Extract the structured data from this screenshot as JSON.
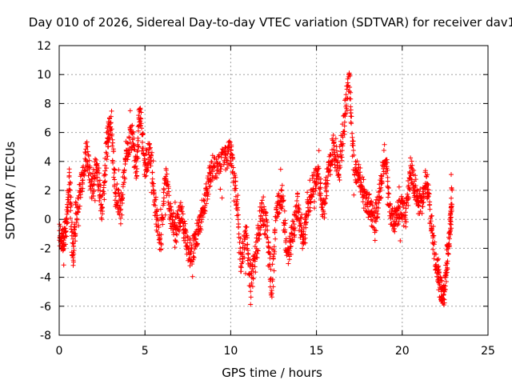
{
  "chart_data": {
    "type": "scatter",
    "title": "Day 010 of 2026, Sidereal Day-to-day VTEC variation (SDTVAR) for receiver dav1",
    "xlabel": "GPS time / hours",
    "ylabel": "SDTVAR / TECUs",
    "xlim": [
      0,
      25
    ],
    "ylim": [
      -8,
      12
    ],
    "xticks": [
      "0",
      "5",
      "10",
      "15",
      "20",
      "25"
    ],
    "yticks": [
      "-8",
      "-6",
      "-4",
      "-2",
      "0",
      "2",
      "4",
      "6",
      "8",
      "10",
      "12"
    ],
    "grid": true,
    "marker": "+",
    "series_color": "#ff0000",
    "series": [
      {
        "name": "SDTVAR",
        "trend": [
          [
            0.0,
            -1.0
          ],
          [
            0.2,
            -1.5
          ],
          [
            0.4,
            -0.8
          ],
          [
            0.6,
            2.8
          ],
          [
            0.8,
            -2.5
          ],
          [
            1.0,
            0.5
          ],
          [
            1.3,
            2.5
          ],
          [
            1.6,
            4.8
          ],
          [
            1.9,
            2.0
          ],
          [
            2.2,
            3.8
          ],
          [
            2.5,
            0.5
          ],
          [
            2.8,
            5.5
          ],
          [
            3.0,
            6.5
          ],
          [
            3.3,
            2.0
          ],
          [
            3.6,
            0.8
          ],
          [
            3.9,
            4.5
          ],
          [
            4.2,
            6.0
          ],
          [
            4.5,
            3.5
          ],
          [
            4.7,
            7.5
          ],
          [
            5.0,
            3.5
          ],
          [
            5.3,
            5.0
          ],
          [
            5.6,
            1.0
          ],
          [
            5.9,
            -2.0
          ],
          [
            6.2,
            3.0
          ],
          [
            6.5,
            0.2
          ],
          [
            6.8,
            -0.8
          ],
          [
            7.1,
            0.5
          ],
          [
            7.4,
            -1.5
          ],
          [
            7.7,
            -2.5
          ],
          [
            8.0,
            -1.2
          ],
          [
            8.3,
            0.2
          ],
          [
            8.6,
            2.0
          ],
          [
            8.9,
            3.5
          ],
          [
            9.3,
            3.8
          ],
          [
            9.7,
            4.2
          ],
          [
            10.0,
            4.8
          ],
          [
            10.3,
            2.0
          ],
          [
            10.6,
            -3.0
          ],
          [
            10.9,
            -1.0
          ],
          [
            11.2,
            -4.5
          ],
          [
            11.5,
            -2.0
          ],
          [
            11.8,
            0.5
          ],
          [
            12.1,
            -0.5
          ],
          [
            12.4,
            -4.8
          ],
          [
            12.7,
            1.0
          ],
          [
            13.0,
            1.5
          ],
          [
            13.3,
            -2.5
          ],
          [
            13.6,
            -1.0
          ],
          [
            13.9,
            1.0
          ],
          [
            14.2,
            -1.5
          ],
          [
            14.5,
            0.8
          ],
          [
            14.8,
            2.5
          ],
          [
            15.1,
            3.0
          ],
          [
            15.4,
            0.5
          ],
          [
            15.7,
            3.5
          ],
          [
            16.0,
            5.0
          ],
          [
            16.3,
            3.5
          ],
          [
            16.6,
            6.5
          ],
          [
            16.9,
            9.8
          ],
          [
            17.2,
            3.5
          ],
          [
            17.5,
            3.0
          ],
          [
            17.8,
            1.5
          ],
          [
            18.1,
            0.8
          ],
          [
            18.4,
            -0.2
          ],
          [
            18.7,
            2.0
          ],
          [
            19.0,
            4.5
          ],
          [
            19.3,
            0.5
          ],
          [
            19.6,
            -0.2
          ],
          [
            19.9,
            1.0
          ],
          [
            20.2,
            0.2
          ],
          [
            20.5,
            3.5
          ],
          [
            20.8,
            2.0
          ],
          [
            21.1,
            1.0
          ],
          [
            21.4,
            3.0
          ],
          [
            21.7,
            -0.5
          ],
          [
            22.0,
            -3.5
          ],
          [
            22.2,
            -4.5
          ],
          [
            22.4,
            -5.5
          ],
          [
            22.6,
            -3.0
          ],
          [
            22.8,
            -0.5
          ],
          [
            22.9,
            1.5
          ]
        ]
      }
    ]
  }
}
